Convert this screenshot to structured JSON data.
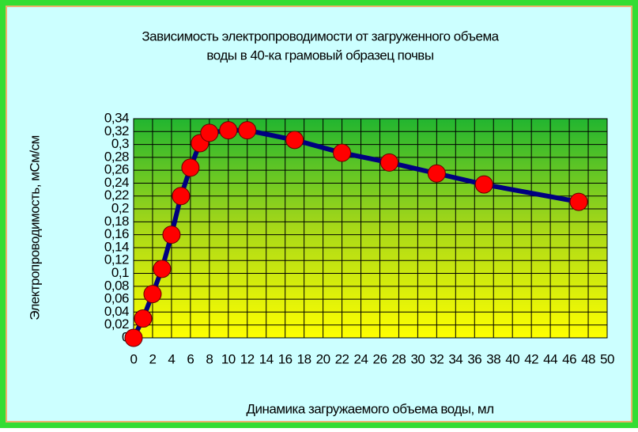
{
  "chart_data": {
    "type": "line",
    "title": [
      "Зависимость электропроводимости от загруженного объема",
      "воды в 40-ка грамовый образец почвы"
    ],
    "x_label": "Динамика загружаемого объема воды, мл",
    "y_label": "Электропроводимость, мСм/см",
    "x": [
      0,
      1,
      2,
      3,
      4,
      5,
      6,
      7,
      8,
      10,
      12,
      17,
      22,
      27,
      32,
      37,
      47
    ],
    "series": [
      {
        "name": "Электропроводимость",
        "color": "#000080",
        "marker_color": "#ff0000",
        "values": [
          0,
          0.03,
          0.068,
          0.107,
          0.16,
          0.22,
          0.264,
          0.302,
          0.318,
          0.322,
          0.322,
          0.307,
          0.287,
          0.272,
          0.255,
          0.238,
          0.211
        ]
      }
    ],
    "xlim": [
      0,
      50
    ],
    "xticks": [
      0,
      2,
      4,
      6,
      8,
      10,
      12,
      14,
      16,
      18,
      20,
      22,
      24,
      26,
      28,
      30,
      32,
      34,
      36,
      38,
      40,
      42,
      44,
      46,
      48,
      50
    ],
    "ylim": [
      0,
      0.34
    ],
    "yticks": [
      0,
      {
        "value": 0.02,
        "label": "0,02"
      },
      {
        "value": 0.04,
        "label": "0,04"
      },
      {
        "value": 0.06,
        "label": "0,06"
      },
      {
        "value": 0.08,
        "label": "0,08"
      },
      {
        "value": 0.1,
        "label": "0,1"
      },
      {
        "value": 0.12,
        "label": "0,12"
      },
      {
        "value": 0.14,
        "label": "0,14"
      },
      {
        "value": 0.16,
        "label": "0,16"
      },
      {
        "value": 0.18,
        "label": "0,18"
      },
      {
        "value": 0.2,
        "label": "0,2"
      },
      {
        "value": 0.22,
        "label": "0,22"
      },
      {
        "value": 0.24,
        "label": "0,24"
      },
      {
        "value": 0.26,
        "label": "0,26"
      },
      {
        "value": 0.28,
        "label": "0,28"
      },
      {
        "value": 0.3,
        "label": "0,3"
      },
      {
        "value": 0.32,
        "label": "0,32"
      },
      {
        "value": 0.34,
        "label": "0,34"
      }
    ],
    "grid": true
  }
}
